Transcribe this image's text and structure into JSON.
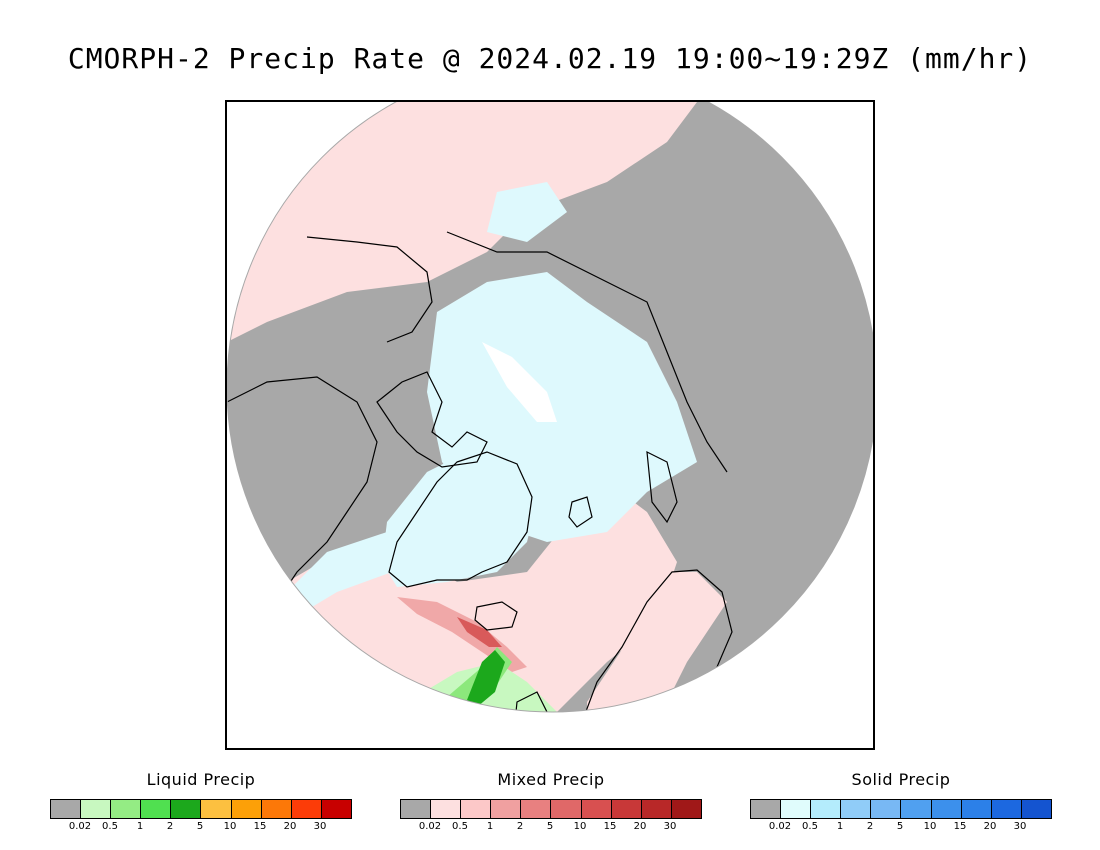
{
  "title": "CMORPH-2 Precip Rate @ 2024.02.19 19:00~19:29Z (mm/hr)",
  "map": {
    "projection": "north-polar-stereographic",
    "colors": {
      "no_precip": "#a8a8a8",
      "liquid_light": "#c8f8c0",
      "liquid_mid": "#8ce87c",
      "liquid_heavy": "#1ca81c",
      "mixed_light": "#fde0e0",
      "mixed_mid": "#f0a8a8",
      "mixed_heavy": "#d85a5a",
      "solid_light": "#def9fd",
      "solid_mid": "#b4ecf8",
      "coast": "#000000",
      "background": "#ffffff"
    }
  },
  "legends": [
    {
      "title": "Liquid Precip",
      "colors": [
        "#a8a8a8",
        "#c8f8c0",
        "#94ec84",
        "#50e050",
        "#1ca81c",
        "#fcc040",
        "#fca008",
        "#fc7808",
        "#fc3c08",
        "#c80000"
      ],
      "ticks": [
        "0.02",
        "0.5",
        "1",
        "2",
        "5",
        "10",
        "15",
        "20",
        "30"
      ]
    },
    {
      "title": "Mixed Precip",
      "colors": [
        "#a8a8a8",
        "#fde0e0",
        "#fcc8c8",
        "#f0a0a0",
        "#e88080",
        "#e06868",
        "#d85050",
        "#c83838",
        "#b82828",
        "#a01818"
      ],
      "ticks": [
        "0.02",
        "0.5",
        "1",
        "2",
        "5",
        "10",
        "15",
        "20",
        "30"
      ]
    },
    {
      "title": "Solid Precip",
      "colors": [
        "#a8a8a8",
        "#e0fcfc",
        "#b4ecfc",
        "#90ccf8",
        "#78b8f4",
        "#50a0f0",
        "#3c90ec",
        "#2c80e8",
        "#1c68e0",
        "#1454d0"
      ],
      "ticks": [
        "0.02",
        "0.5",
        "1",
        "2",
        "5",
        "10",
        "15",
        "20",
        "30"
      ]
    }
  ]
}
